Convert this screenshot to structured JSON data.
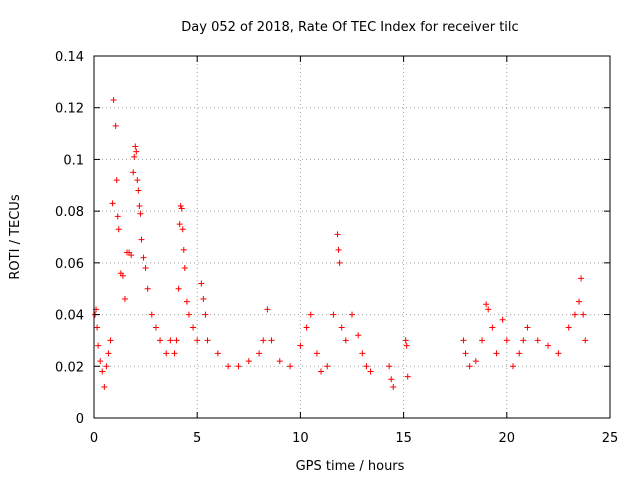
{
  "chart_data": {
    "type": "scatter",
    "title": "Day 052 of 2018, Rate Of TEC Index for receiver tilc",
    "xlabel": "GPS time / hours",
    "ylabel": "ROTI / TECUs",
    "xlim": [
      0,
      25
    ],
    "ylim": [
      0,
      0.14
    ],
    "xticks": [
      "0",
      "5",
      "10",
      "15",
      "20",
      "25"
    ],
    "yticks": [
      "0",
      "0.02",
      "0.04",
      "0.06",
      "0.08",
      "0.1",
      "0.12",
      "0.14"
    ],
    "grid": true,
    "marker": "+",
    "series": [
      {
        "name": "ROTI",
        "color": "#ff0000",
        "points": [
          [
            0.05,
            0.04
          ],
          [
            0.1,
            0.042
          ],
          [
            0.15,
            0.035
          ],
          [
            0.2,
            0.028
          ],
          [
            0.3,
            0.022
          ],
          [
            0.4,
            0.018
          ],
          [
            0.5,
            0.012
          ],
          [
            0.6,
            0.02
          ],
          [
            0.7,
            0.025
          ],
          [
            0.8,
            0.03
          ],
          [
            0.9,
            0.083
          ],
          [
            0.95,
            0.123
          ],
          [
            1.05,
            0.113
          ],
          [
            1.1,
            0.092
          ],
          [
            1.15,
            0.078
          ],
          [
            1.2,
            0.073
          ],
          [
            1.3,
            0.056
          ],
          [
            1.4,
            0.055
          ],
          [
            1.5,
            0.046
          ],
          [
            1.6,
            0.064
          ],
          [
            1.7,
            0.064
          ],
          [
            1.8,
            0.063
          ],
          [
            1.9,
            0.095
          ],
          [
            1.95,
            0.101
          ],
          [
            2.0,
            0.105
          ],
          [
            2.05,
            0.103
          ],
          [
            2.1,
            0.092
          ],
          [
            2.15,
            0.088
          ],
          [
            2.2,
            0.082
          ],
          [
            2.25,
            0.079
          ],
          [
            2.3,
            0.069
          ],
          [
            2.4,
            0.062
          ],
          [
            2.5,
            0.058
          ],
          [
            2.6,
            0.05
          ],
          [
            2.8,
            0.04
          ],
          [
            3.0,
            0.035
          ],
          [
            3.2,
            0.03
          ],
          [
            3.5,
            0.025
          ],
          [
            3.7,
            0.03
          ],
          [
            3.9,
            0.025
          ],
          [
            4.0,
            0.03
          ],
          [
            4.1,
            0.05
          ],
          [
            4.15,
            0.075
          ],
          [
            4.2,
            0.082
          ],
          [
            4.25,
            0.081
          ],
          [
            4.3,
            0.073
          ],
          [
            4.35,
            0.065
          ],
          [
            4.4,
            0.058
          ],
          [
            4.5,
            0.045
          ],
          [
            4.6,
            0.04
          ],
          [
            4.8,
            0.035
          ],
          [
            5.0,
            0.03
          ],
          [
            5.2,
            0.052
          ],
          [
            5.3,
            0.046
          ],
          [
            5.4,
            0.04
          ],
          [
            5.5,
            0.03
          ],
          [
            6.0,
            0.025
          ],
          [
            6.5,
            0.02
          ],
          [
            7.0,
            0.02
          ],
          [
            7.5,
            0.022
          ],
          [
            8.0,
            0.025
          ],
          [
            8.2,
            0.03
          ],
          [
            8.4,
            0.042
          ],
          [
            8.6,
            0.03
          ],
          [
            9.0,
            0.022
          ],
          [
            9.5,
            0.02
          ],
          [
            10.0,
            0.028
          ],
          [
            10.3,
            0.035
          ],
          [
            10.5,
            0.04
          ],
          [
            10.8,
            0.025
          ],
          [
            11.0,
            0.018
          ],
          [
            11.3,
            0.02
          ],
          [
            11.6,
            0.04
          ],
          [
            11.8,
            0.071
          ],
          [
            11.85,
            0.065
          ],
          [
            11.9,
            0.06
          ],
          [
            12.0,
            0.035
          ],
          [
            12.2,
            0.03
          ],
          [
            12.5,
            0.04
          ],
          [
            12.8,
            0.032
          ],
          [
            13.0,
            0.025
          ],
          [
            13.2,
            0.02
          ],
          [
            13.4,
            0.018
          ],
          [
            14.3,
            0.02
          ],
          [
            14.4,
            0.015
          ],
          [
            14.5,
            0.012
          ],
          [
            15.1,
            0.03
          ],
          [
            15.15,
            0.028
          ],
          [
            15.2,
            0.016
          ],
          [
            17.9,
            0.03
          ],
          [
            18.0,
            0.025
          ],
          [
            18.2,
            0.02
          ],
          [
            18.5,
            0.022
          ],
          [
            18.8,
            0.03
          ],
          [
            19.0,
            0.044
          ],
          [
            19.1,
            0.042
          ],
          [
            19.3,
            0.035
          ],
          [
            19.5,
            0.025
          ],
          [
            19.8,
            0.038
          ],
          [
            20.0,
            0.03
          ],
          [
            20.3,
            0.02
          ],
          [
            20.6,
            0.025
          ],
          [
            20.8,
            0.03
          ],
          [
            21.0,
            0.035
          ],
          [
            21.5,
            0.03
          ],
          [
            22.0,
            0.028
          ],
          [
            22.5,
            0.025
          ],
          [
            23.0,
            0.035
          ],
          [
            23.3,
            0.04
          ],
          [
            23.5,
            0.045
          ],
          [
            23.6,
            0.054
          ],
          [
            23.7,
            0.04
          ],
          [
            23.8,
            0.03
          ]
        ]
      }
    ]
  }
}
